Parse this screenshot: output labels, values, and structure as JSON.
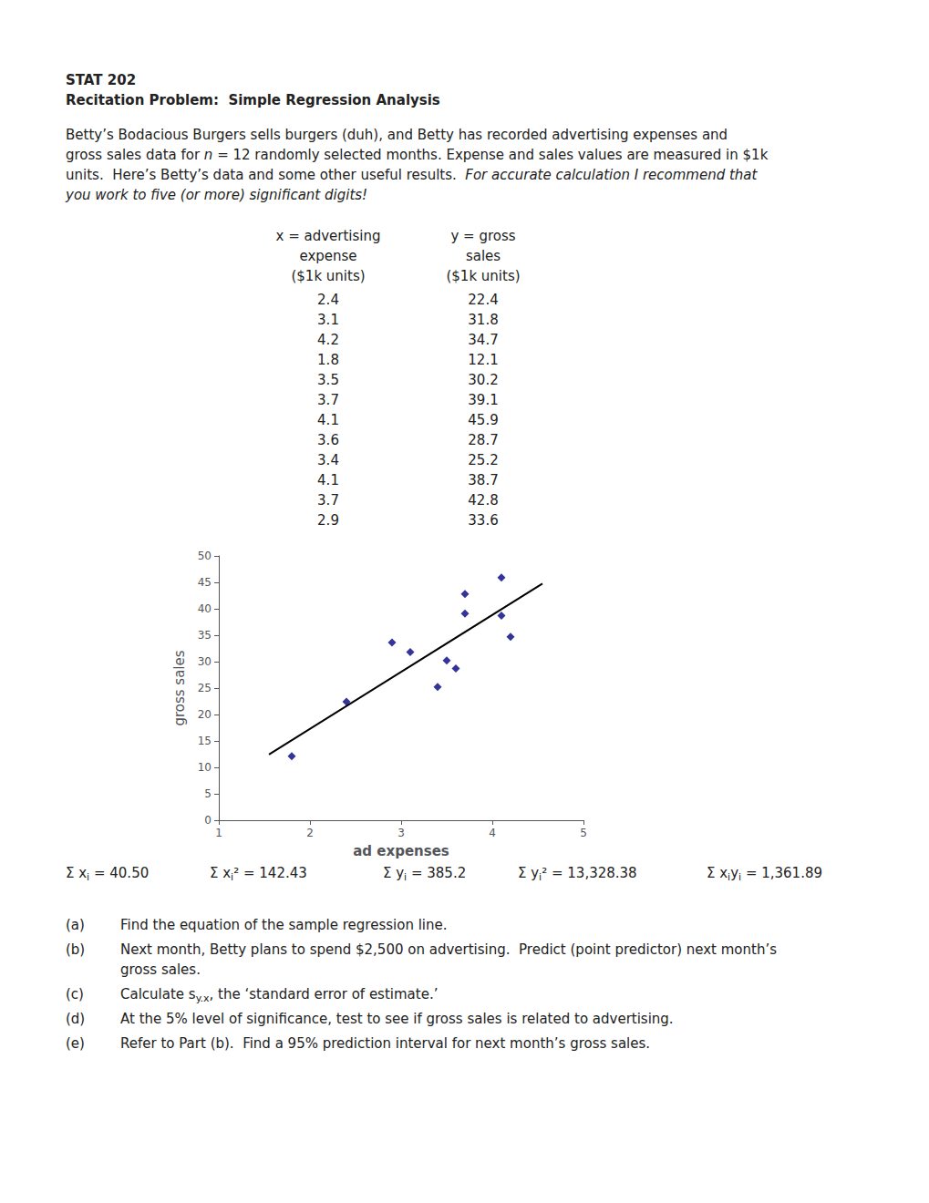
{
  "chart_data": {
    "type": "scatter",
    "title": "STAT 202",
    "subtitle": "Recitation Problem:  Simple Regression Analysis",
    "paragraph": [
      "Betty’s Bodacious Burgers sells burgers (duh), and Betty has recorded advertising expenses and",
      [
        {
          "text": "gross sales data for "
        },
        {
          "text": "n",
          "italic": true
        },
        {
          "text": " = 12 randomly selected months. Expense and sales values are measured in $1k"
        }
      ],
      [
        {
          "text": "units.  Here’s Betty’s data and some other useful results.  "
        },
        {
          "text": "For accurate calculation I recommend that",
          "italic": true
        }
      ],
      [
        {
          "text": "you work to five (or more) significant digits!",
          "italic": true
        }
      ]
    ],
    "table_headers": [
      [
        "x = advertising",
        "expense",
        "($1k units)"
      ],
      [
        "y = gross",
        "sales",
        "($1k units)"
      ]
    ],
    "x": [
      2.4,
      3.1,
      4.2,
      1.8,
      3.5,
      3.7,
      4.1,
      3.6,
      3.4,
      4.1,
      3.7,
      2.9
    ],
    "series": [
      {
        "type": "scatter",
        "marker": "diamond",
        "color": "#000080",
        "values": [
          22.4,
          31.8,
          34.7,
          12.1,
          30.2,
          39.1,
          45.9,
          28.7,
          25.2,
          38.7,
          42.8,
          33.6
        ]
      },
      {
        "type": "line",
        "color": "#000000",
        "x": [
          1.55,
          4.55
        ],
        "values": [
          12.446887,
          44.753374
        ]
      }
    ],
    "xlabel": "ad expenses",
    "ylabel": "gross sales",
    "xlim": [
      1,
      5
    ],
    "xticks": [
      1,
      2,
      3,
      4,
      5
    ],
    "ylim": [
      0,
      50
    ],
    "yticks": [
      0,
      5,
      10,
      15,
      20,
      25,
      30,
      35,
      40,
      45,
      50
    ],
    "grid": false,
    "sums": [
      [
        {
          "text": "Σ x"
        },
        {
          "text": "i",
          "sub": true
        },
        {
          "text": " = 40.50"
        }
      ],
      [
        {
          "text": "Σ x"
        },
        {
          "text": "i",
          "sub": true
        },
        {
          "text": "² = 142.43"
        }
      ],
      [
        {
          "text": "Σ y"
        },
        {
          "text": "i",
          "sub": true
        },
        {
          "text": " = 385.2"
        }
      ],
      [
        {
          "text": "Σ y"
        },
        {
          "text": "i",
          "sub": true
        },
        {
          "text": "² = 13,328.38"
        }
      ],
      [
        {
          "text": "Σ x"
        },
        {
          "text": "i",
          "sub": true
        },
        {
          "text": "y"
        },
        {
          "text": "i",
          "sub": true
        },
        {
          "text": " = 1,361.89"
        }
      ]
    ],
    "questions": [
      {
        "label": "(a)",
        "lines": [
          "Find the equation of the sample regression line."
        ]
      },
      {
        "label": "(b)",
        "lines": [
          "Next month, Betty plans to spend $2,500 on advertising.  Predict (point predictor) next month’s",
          "gross sales."
        ]
      },
      {
        "label": "(c)",
        "lines": [
          [
            {
              "text": "Calculate s"
            },
            {
              "text": "y.x",
              "sub": true
            },
            {
              "text": ", the ‘standard error of estimate.’"
            }
          ]
        ]
      },
      {
        "label": "(d)",
        "lines": [
          "At the 5% level of significance, test to see if gross sales is related to advertising."
        ]
      },
      {
        "label": "(e)",
        "lines": [
          "Refer to Part (b).  Find a 95% prediction interval for next month’s gross sales."
        ]
      }
    ]
  }
}
